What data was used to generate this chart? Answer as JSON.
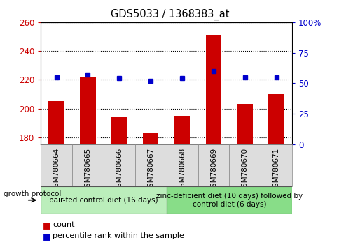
{
  "title": "GDS5033 / 1368383_at",
  "categories": [
    "GSM780664",
    "GSM780665",
    "GSM780666",
    "GSM780667",
    "GSM780668",
    "GSM780669",
    "GSM780670",
    "GSM780671"
  ],
  "count_values": [
    205,
    222,
    194,
    183,
    195,
    251,
    203,
    210
  ],
  "percentile_values": [
    55,
    57,
    54,
    52,
    54,
    60,
    55,
    55
  ],
  "ylim_left": [
    175,
    260
  ],
  "ylim_right": [
    0,
    100
  ],
  "yticks_left": [
    180,
    200,
    220,
    240,
    260
  ],
  "yticks_right": [
    0,
    25,
    50,
    75,
    100
  ],
  "yticklabels_right": [
    "0",
    "25",
    "50",
    "75",
    "100%"
  ],
  "bar_color": "#cc0000",
  "dot_color": "#0000cc",
  "bar_bottom": 175,
  "group1_label": "pair-fed control diet (16 days)",
  "group2_label": "zinc-deficient diet (10 days) followed by\ncontrol diet (6 days)",
  "group1_color": "#bbeebb",
  "group2_color": "#88dd88",
  "protocol_label": "growth protocol",
  "legend_count_label": "count",
  "legend_percentile_label": "percentile rank within the sample",
  "tick_label_color_left": "#cc0000",
  "tick_label_color_right": "#0000cc",
  "bar_width": 0.5,
  "figsize": [
    4.85,
    3.54
  ],
  "dpi": 100
}
